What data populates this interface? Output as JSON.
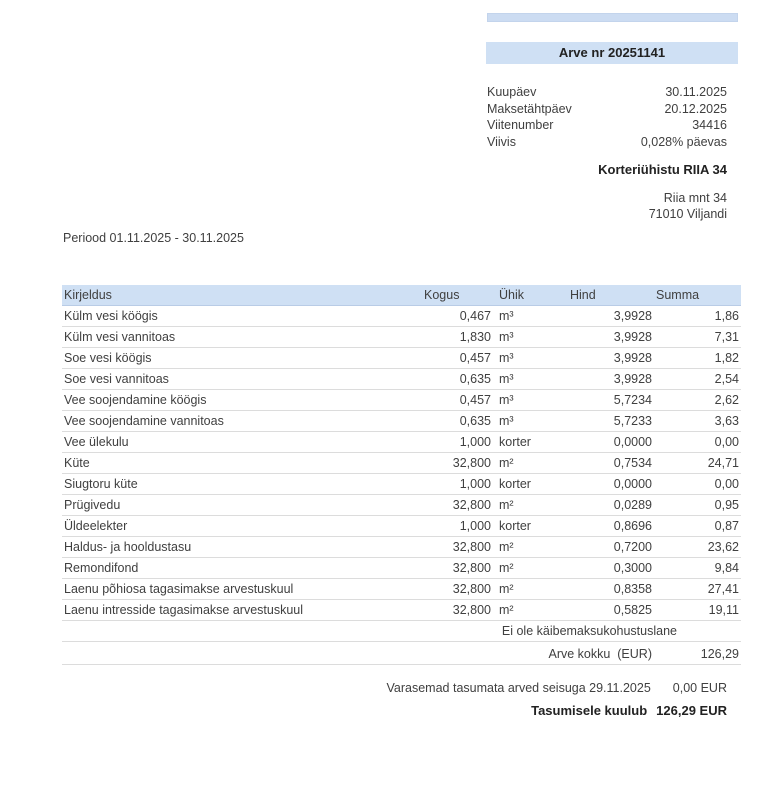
{
  "colors": {
    "accent_blue": "#cfe0f4",
    "row_border": "#dcdcdc",
    "text": "#404040"
  },
  "invoice": {
    "title": "Arve nr 20251141",
    "meta": [
      {
        "label": "Kuupäev",
        "value": "30.11.2025"
      },
      {
        "label": "Maksetähtpäev",
        "value": "20.12.2025"
      },
      {
        "label": "Viitenumber",
        "value": "34416"
      },
      {
        "label": "Viivis",
        "value": "0,028% päevas"
      }
    ],
    "recipient": {
      "name": "Korteriühistu RIIA 34",
      "address_line1": "Riia mnt 34",
      "address_line2": "71010 Viljandi"
    },
    "period": "Periood 01.11.2025 - 30.11.2025",
    "table": {
      "headers": {
        "desc": "Kirjeldus",
        "qty": "Kogus",
        "unit": "Ühik",
        "price": "Hind",
        "sum": "Summa"
      },
      "rows": [
        {
          "desc": "Külm vesi köögis",
          "qty": "0,467",
          "unit": "m³",
          "price": "3,9928",
          "sum": "1,86"
        },
        {
          "desc": "Külm vesi vannitoas",
          "qty": "1,830",
          "unit": "m³",
          "price": "3,9928",
          "sum": "7,31"
        },
        {
          "desc": "Soe vesi köögis",
          "qty": "0,457",
          "unit": "m³",
          "price": "3,9928",
          "sum": "1,82"
        },
        {
          "desc": "Soe vesi vannitoas",
          "qty": "0,635",
          "unit": "m³",
          "price": "3,9928",
          "sum": "2,54"
        },
        {
          "desc": "Vee soojendamine köögis",
          "qty": "0,457",
          "unit": "m³",
          "price": "5,7234",
          "sum": "2,62"
        },
        {
          "desc": "Vee soojendamine vannitoas",
          "qty": "0,635",
          "unit": "m³",
          "price": "5,7233",
          "sum": "3,63"
        },
        {
          "desc": "Vee ülekulu",
          "qty": "1,000",
          "unit": "korter",
          "price": "0,0000",
          "sum": "0,00"
        },
        {
          "desc": "Küte",
          "qty": "32,800",
          "unit": "m²",
          "price": "0,7534",
          "sum": "24,71"
        },
        {
          "desc": "Siugtoru küte",
          "qty": "1,000",
          "unit": "korter",
          "price": "0,0000",
          "sum": "0,00"
        },
        {
          "desc": "Prügivedu",
          "qty": "32,800",
          "unit": "m²",
          "price": "0,0289",
          "sum": "0,95"
        },
        {
          "desc": "Üldeelekter",
          "qty": "1,000",
          "unit": "korter",
          "price": "0,8696",
          "sum": "0,87"
        },
        {
          "desc": "Haldus- ja hooldustasu",
          "qty": "32,800",
          "unit": "m²",
          "price": "0,7200",
          "sum": "23,62"
        },
        {
          "desc": "Remondifond",
          "qty": "32,800",
          "unit": "m²",
          "price": "0,3000",
          "sum": "9,84"
        },
        {
          "desc": "Laenu põhiosa tagasimakse arvestuskuul",
          "qty": "32,800",
          "unit": "m²",
          "price": "0,8358",
          "sum": "27,41"
        },
        {
          "desc": "Laenu intresside tagasimakse arvestuskuul",
          "qty": "32,800",
          "unit": "m²",
          "price": "0,5825",
          "sum": "19,11"
        }
      ]
    },
    "tax_note": "Ei ole käibemaksukohustuslane",
    "total_row": {
      "label": "Arve kokku  (EUR)",
      "value": "126,29"
    },
    "previous_unpaid": {
      "label": "Varasemad tasumata arved seisuga 29.11.2025",
      "value": "0,00 EUR"
    },
    "amount_due": {
      "label": "Tasumisele kuulub",
      "value": "126,29 EUR"
    }
  }
}
